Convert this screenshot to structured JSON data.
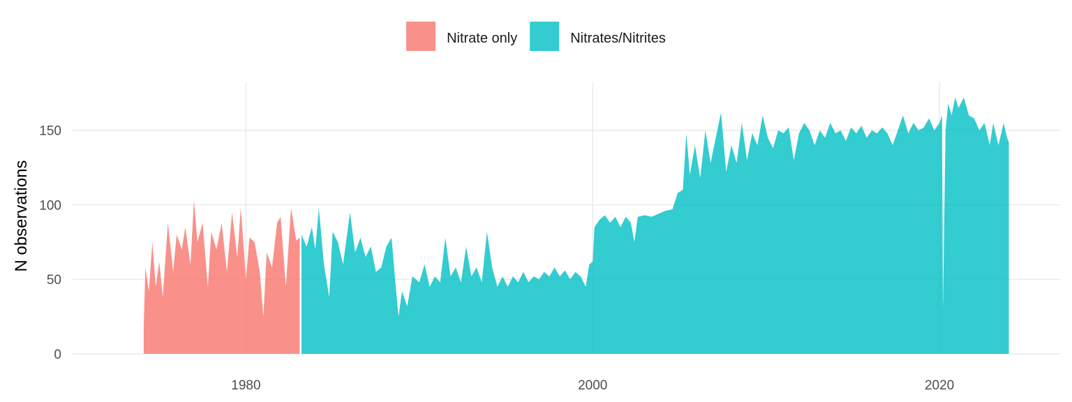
{
  "chart_data": {
    "type": "area",
    "title": "",
    "xlabel": "",
    "ylabel": "N observations",
    "xlim": [
      1970,
      2027
    ],
    "ylim": [
      0,
      185
    ],
    "x_ticks": [
      1980,
      2000,
      2020
    ],
    "y_ticks": [
      0,
      50,
      100,
      150
    ],
    "grid": true,
    "legend_position": "top",
    "series": [
      {
        "name": "Nitrate only",
        "color": "#F8766D",
        "points": [
          [
            1974.1,
            18
          ],
          [
            1974.2,
            58
          ],
          [
            1974.4,
            42
          ],
          [
            1974.6,
            75
          ],
          [
            1974.8,
            45
          ],
          [
            1975.0,
            62
          ],
          [
            1975.2,
            38
          ],
          [
            1975.5,
            88
          ],
          [
            1975.8,
            55
          ],
          [
            1976.0,
            80
          ],
          [
            1976.3,
            70
          ],
          [
            1976.5,
            85
          ],
          [
            1976.8,
            60
          ],
          [
            1977.0,
            103
          ],
          [
            1977.2,
            75
          ],
          [
            1977.5,
            88
          ],
          [
            1977.8,
            45
          ],
          [
            1978.0,
            82
          ],
          [
            1978.3,
            70
          ],
          [
            1978.6,
            88
          ],
          [
            1978.9,
            55
          ],
          [
            1979.2,
            95
          ],
          [
            1979.5,
            65
          ],
          [
            1979.7,
            98
          ],
          [
            1980.0,
            50
          ],
          [
            1980.2,
            78
          ],
          [
            1980.5,
            75
          ],
          [
            1980.8,
            55
          ],
          [
            1981.0,
            25
          ],
          [
            1981.2,
            68
          ],
          [
            1981.5,
            58
          ],
          [
            1981.8,
            88
          ],
          [
            1982.0,
            92
          ],
          [
            1982.3,
            45
          ],
          [
            1982.6,
            98
          ],
          [
            1982.9,
            76
          ],
          [
            1983.1,
            78
          ]
        ]
      },
      {
        "name": "Nitrates/Nitrites",
        "color": "#00BFC4",
        "points": [
          [
            1983.2,
            80
          ],
          [
            1983.5,
            72
          ],
          [
            1983.8,
            85
          ],
          [
            1984.0,
            70
          ],
          [
            1984.2,
            98
          ],
          [
            1984.5,
            60
          ],
          [
            1984.8,
            38
          ],
          [
            1985.0,
            82
          ],
          [
            1985.3,
            75
          ],
          [
            1985.6,
            60
          ],
          [
            1986.0,
            95
          ],
          [
            1986.3,
            68
          ],
          [
            1986.6,
            78
          ],
          [
            1986.9,
            65
          ],
          [
            1987.2,
            72
          ],
          [
            1987.5,
            55
          ],
          [
            1987.8,
            58
          ],
          [
            1988.1,
            72
          ],
          [
            1988.4,
            78
          ],
          [
            1988.6,
            50
          ],
          [
            1988.8,
            25
          ],
          [
            1989.0,
            42
          ],
          [
            1989.3,
            32
          ],
          [
            1989.6,
            52
          ],
          [
            1990.0,
            48
          ],
          [
            1990.3,
            60
          ],
          [
            1990.6,
            45
          ],
          [
            1990.9,
            52
          ],
          [
            1991.2,
            48
          ],
          [
            1991.5,
            78
          ],
          [
            1991.8,
            52
          ],
          [
            1992.1,
            58
          ],
          [
            1992.4,
            48
          ],
          [
            1992.7,
            72
          ],
          [
            1993.0,
            52
          ],
          [
            1993.3,
            58
          ],
          [
            1993.6,
            48
          ],
          [
            1993.9,
            82
          ],
          [
            1994.2,
            58
          ],
          [
            1994.5,
            45
          ],
          [
            1994.8,
            52
          ],
          [
            1995.1,
            45
          ],
          [
            1995.4,
            52
          ],
          [
            1995.7,
            48
          ],
          [
            1996.0,
            55
          ],
          [
            1996.3,
            48
          ],
          [
            1996.6,
            52
          ],
          [
            1996.9,
            50
          ],
          [
            1997.2,
            55
          ],
          [
            1997.5,
            52
          ],
          [
            1997.8,
            58
          ],
          [
            1998.1,
            52
          ],
          [
            1998.4,
            56
          ],
          [
            1998.7,
            50
          ],
          [
            1999.0,
            55
          ],
          [
            1999.3,
            52
          ],
          [
            1999.6,
            45
          ],
          [
            1999.8,
            60
          ],
          [
            2000.0,
            62
          ],
          [
            2000.1,
            85
          ],
          [
            2000.4,
            90
          ],
          [
            2000.7,
            93
          ],
          [
            2001.0,
            88
          ],
          [
            2001.3,
            92
          ],
          [
            2001.6,
            85
          ],
          [
            2001.9,
            92
          ],
          [
            2002.2,
            88
          ],
          [
            2002.4,
            75
          ],
          [
            2002.6,
            92
          ],
          [
            2003.0,
            93
          ],
          [
            2003.4,
            92
          ],
          [
            2003.8,
            94
          ],
          [
            2004.2,
            96
          ],
          [
            2004.6,
            97
          ],
          [
            2004.9,
            108
          ],
          [
            2005.2,
            110
          ],
          [
            2005.4,
            148
          ],
          [
            2005.6,
            120
          ],
          [
            2005.9,
            140
          ],
          [
            2006.2,
            118
          ],
          [
            2006.5,
            150
          ],
          [
            2006.8,
            128
          ],
          [
            2007.1,
            145
          ],
          [
            2007.4,
            162
          ],
          [
            2007.7,
            122
          ],
          [
            2008.0,
            140
          ],
          [
            2008.3,
            128
          ],
          [
            2008.6,
            155
          ],
          [
            2008.9,
            130
          ],
          [
            2009.2,
            148
          ],
          [
            2009.5,
            140
          ],
          [
            2009.8,
            160
          ],
          [
            2010.1,
            145
          ],
          [
            2010.4,
            138
          ],
          [
            2010.7,
            150
          ],
          [
            2011.0,
            148
          ],
          [
            2011.3,
            152
          ],
          [
            2011.6,
            130
          ],
          [
            2011.9,
            148
          ],
          [
            2012.2,
            155
          ],
          [
            2012.5,
            150
          ],
          [
            2012.8,
            140
          ],
          [
            2013.1,
            150
          ],
          [
            2013.4,
            145
          ],
          [
            2013.7,
            155
          ],
          [
            2014.0,
            148
          ],
          [
            2014.3,
            150
          ],
          [
            2014.6,
            143
          ],
          [
            2014.9,
            152
          ],
          [
            2015.2,
            148
          ],
          [
            2015.5,
            153
          ],
          [
            2015.8,
            145
          ],
          [
            2016.1,
            150
          ],
          [
            2016.4,
            148
          ],
          [
            2016.7,
            152
          ],
          [
            2017.0,
            148
          ],
          [
            2017.3,
            140
          ],
          [
            2017.6,
            150
          ],
          [
            2017.9,
            160
          ],
          [
            2018.2,
            148
          ],
          [
            2018.5,
            155
          ],
          [
            2018.8,
            150
          ],
          [
            2019.1,
            152
          ],
          [
            2019.4,
            158
          ],
          [
            2019.7,
            150
          ],
          [
            2020.0,
            155
          ],
          [
            2020.15,
            160
          ],
          [
            2020.2,
            30
          ],
          [
            2020.35,
            150
          ],
          [
            2020.5,
            168
          ],
          [
            2020.7,
            160
          ],
          [
            2020.9,
            172
          ],
          [
            2021.1,
            165
          ],
          [
            2021.4,
            172
          ],
          [
            2021.7,
            160
          ],
          [
            2022.0,
            158
          ],
          [
            2022.3,
            150
          ],
          [
            2022.6,
            155
          ],
          [
            2022.9,
            140
          ],
          [
            2023.1,
            155
          ],
          [
            2023.4,
            140
          ],
          [
            2023.7,
            155
          ],
          [
            2023.9,
            145
          ],
          [
            2024.0,
            142
          ]
        ]
      }
    ]
  }
}
